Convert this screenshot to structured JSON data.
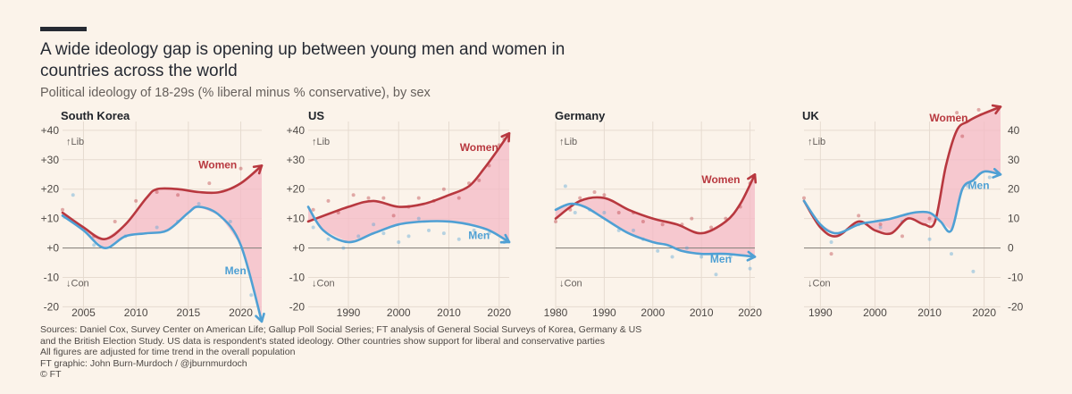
{
  "header": {
    "title": "A wide ideology gap is opening up between young men and women in countries across the world",
    "subtitle": "Political ideology of 18-29s (% liberal minus % conservative), by sex"
  },
  "colors": {
    "women": "#b8383f",
    "men": "#4fa0d4",
    "gap_fill": "#f4b9c5",
    "axis": "#66605c"
  },
  "chart_data": [
    {
      "type": "line",
      "title": "South Korea",
      "xlim": [
        2003,
        2022
      ],
      "ylim": [
        -22,
        43
      ],
      "x_ticks": [
        2005,
        2010,
        2015,
        2020
      ],
      "y_ticks": [
        -20,
        -10,
        0,
        10,
        20,
        30,
        40
      ],
      "y_tick_labels": [
        "-20",
        "-10",
        "+0",
        "+10",
        "+20",
        "+30",
        "+40"
      ],
      "y_axis_side": "left",
      "lib_label": "↑Lib",
      "con_label": "↓Con",
      "series": [
        {
          "name": "Women",
          "x": [
            2003,
            2005,
            2007,
            2009,
            2011,
            2012,
            2014,
            2016,
            2018,
            2020,
            2022
          ],
          "y": [
            12,
            7,
            3,
            8,
            17,
            20,
            20,
            19,
            19,
            22,
            28
          ]
        },
        {
          "name": "Men",
          "x": [
            2003,
            2005,
            2007,
            2009,
            2011,
            2013,
            2015,
            2016,
            2018,
            2020,
            2022
          ],
          "y": [
            11,
            6,
            0,
            4,
            5,
            6,
            12,
            14,
            11,
            1,
            -25
          ]
        }
      ],
      "dots": {
        "Women": [
          [
            2003,
            13
          ],
          [
            2006,
            4
          ],
          [
            2008,
            9
          ],
          [
            2010,
            16
          ],
          [
            2012,
            19
          ],
          [
            2014,
            18
          ],
          [
            2017,
            22
          ],
          [
            2020,
            27
          ]
        ],
        "Men": [
          [
            2004,
            18
          ],
          [
            2006,
            1
          ],
          [
            2009,
            4
          ],
          [
            2012,
            7
          ],
          [
            2014,
            9
          ],
          [
            2016,
            15
          ],
          [
            2019,
            9
          ],
          [
            2021,
            -16
          ]
        ]
      }
    },
    {
      "type": "line",
      "title": "US",
      "xlim": [
        1982,
        2022
      ],
      "ylim": [
        -22,
        43
      ],
      "x_ticks": [
        1990,
        2000,
        2010,
        2020
      ],
      "y_ticks": [
        -20,
        -10,
        0,
        10,
        20,
        30,
        40
      ],
      "y_tick_labels": [
        "-20",
        "-10",
        "+0",
        "+10",
        "+20",
        "+30",
        "+40"
      ],
      "y_axis_side": "left",
      "lib_label": "↑Lib",
      "con_label": "↓Con",
      "series": [
        {
          "name": "Women",
          "x": [
            1982,
            1990,
            1995,
            2000,
            2005,
            2010,
            2014,
            2017,
            2020,
            2022
          ],
          "y": [
            9,
            14,
            16,
            14,
            15,
            18,
            21,
            27,
            34,
            39
          ]
        },
        {
          "name": "Men",
          "x": [
            1982,
            1985,
            1990,
            1995,
            2000,
            2005,
            2010,
            2014,
            2018,
            2022
          ],
          "y": [
            14,
            6,
            2,
            5,
            8,
            9,
            9,
            8,
            6,
            2
          ]
        }
      ],
      "dots": {
        "Women": [
          [
            1983,
            13
          ],
          [
            1986,
            16
          ],
          [
            1988,
            12
          ],
          [
            1991,
            18
          ],
          [
            1994,
            17
          ],
          [
            1997,
            17
          ],
          [
            1999,
            11
          ],
          [
            2002,
            14
          ],
          [
            2004,
            17
          ],
          [
            2007,
            16
          ],
          [
            2009,
            20
          ],
          [
            2012,
            17
          ],
          [
            2014,
            22
          ],
          [
            2016,
            23
          ],
          [
            2018,
            28
          ],
          [
            2020,
            35
          ],
          [
            2021,
            37
          ]
        ],
        "Men": [
          [
            1983,
            7
          ],
          [
            1986,
            3
          ],
          [
            1989,
            0
          ],
          [
            1992,
            4
          ],
          [
            1995,
            8
          ],
          [
            1997,
            5
          ],
          [
            2000,
            2
          ],
          [
            2002,
            4
          ],
          [
            2004,
            10
          ],
          [
            2006,
            6
          ],
          [
            2009,
            5
          ],
          [
            2012,
            3
          ],
          [
            2015,
            6
          ],
          [
            2018,
            5
          ],
          [
            2021,
            2
          ]
        ]
      }
    },
    {
      "type": "line",
      "title": "Germany",
      "xlim": [
        1980,
        2021
      ],
      "ylim": [
        -22,
        43
      ],
      "x_ticks": [
        1980,
        1990,
        2000,
        2010,
        2020
      ],
      "y_ticks": [
        -20,
        -10,
        0,
        10,
        20,
        30,
        40
      ],
      "y_axis_side": "none",
      "lib_label": "↑Lib",
      "con_label": "↓Con",
      "series": [
        {
          "name": "Women",
          "x": [
            1980,
            1985,
            1990,
            1995,
            2000,
            2005,
            2010,
            2015,
            2018,
            2021
          ],
          "y": [
            10,
            16,
            17,
            13,
            10,
            8,
            5,
            9,
            15,
            25
          ]
        },
        {
          "name": "Men",
          "x": [
            1980,
            1983,
            1986,
            1990,
            1995,
            2000,
            2003,
            2006,
            2010,
            2015,
            2021
          ],
          "y": [
            13,
            15,
            14,
            10,
            5,
            2,
            1,
            -1,
            -2,
            -2,
            -3
          ]
        }
      ],
      "dots": {
        "Women": [
          [
            1980,
            9
          ],
          [
            1983,
            13
          ],
          [
            1985,
            17
          ],
          [
            1988,
            19
          ],
          [
            1990,
            18
          ],
          [
            1993,
            12
          ],
          [
            1996,
            12
          ],
          [
            1998,
            9
          ],
          [
            2002,
            8
          ],
          [
            2006,
            8
          ],
          [
            2008,
            10
          ],
          [
            2012,
            7
          ],
          [
            2015,
            10
          ],
          [
            2018,
            14
          ],
          [
            2020,
            22
          ]
        ],
        "Men": [
          [
            1982,
            21
          ],
          [
            1984,
            12
          ],
          [
            1987,
            13
          ],
          [
            1990,
            12
          ],
          [
            1993,
            6
          ],
          [
            1996,
            6
          ],
          [
            1998,
            3
          ],
          [
            2001,
            -1
          ],
          [
            2004,
            -3
          ],
          [
            2007,
            0
          ],
          [
            2010,
            -3
          ],
          [
            2013,
            -9
          ],
          [
            2016,
            -3
          ],
          [
            2020,
            -7
          ]
        ]
      }
    },
    {
      "type": "line",
      "title": "UK",
      "xlim": [
        1987,
        2023
      ],
      "ylim": [
        -22,
        43
      ],
      "x_ticks": [
        1990,
        2000,
        2010,
        2020
      ],
      "y_ticks": [
        -20,
        -10,
        0,
        10,
        20,
        30,
        40
      ],
      "y_tick_labels": [
        "-20",
        "-10",
        "0",
        "10",
        "20",
        "30",
        "40"
      ],
      "y_axis_side": "right",
      "lib_label": "↑Lib",
      "con_label": "↓Con",
      "series": [
        {
          "name": "Women",
          "x": [
            1987,
            1990,
            1993,
            1997,
            2000,
            2003,
            2006,
            2009,
            2011,
            2013,
            2015,
            2017,
            2019,
            2023
          ],
          "y": [
            16,
            7,
            4,
            9,
            6,
            5,
            10,
            8,
            9,
            28,
            40,
            43,
            45,
            48
          ]
        },
        {
          "name": "Men",
          "x": [
            1987,
            1990,
            1993,
            1997,
            2000,
            2003,
            2007,
            2010,
            2012,
            2014,
            2016,
            2018,
            2020,
            2023
          ],
          "y": [
            16,
            8,
            5,
            8,
            9,
            10,
            12,
            12,
            9,
            6,
            20,
            23,
            26,
            25
          ]
        }
      ],
      "dots": {
        "Women": [
          [
            1987,
            17
          ],
          [
            1992,
            -2
          ],
          [
            1997,
            11
          ],
          [
            2001,
            8
          ],
          [
            2005,
            4
          ],
          [
            2010,
            10
          ],
          [
            2015,
            46
          ],
          [
            2016,
            38
          ],
          [
            2019,
            47
          ]
        ],
        "Men": [
          [
            1992,
            2
          ],
          [
            1997,
            8
          ],
          [
            2001,
            7
          ],
          [
            2005,
            9
          ],
          [
            2010,
            3
          ],
          [
            2014,
            -2
          ],
          [
            2017,
            21
          ],
          [
            2018,
            -8
          ],
          [
            2021,
            24
          ]
        ]
      }
    }
  ],
  "footer": {
    "lines": [
      "Sources: Daniel Cox, Survey Center on American Life; Gallup Poll Social Series; FT analysis of General Social Surveys of Korea, Germany & US",
      "and the British Election Study. US data is respondent's stated ideology. Other countries show support for liberal and conservative parties",
      "All figures are adjusted for time trend in the overall population",
      "FT graphic: John Burn-Murdoch / @jburnmurdoch",
      "© FT"
    ]
  }
}
